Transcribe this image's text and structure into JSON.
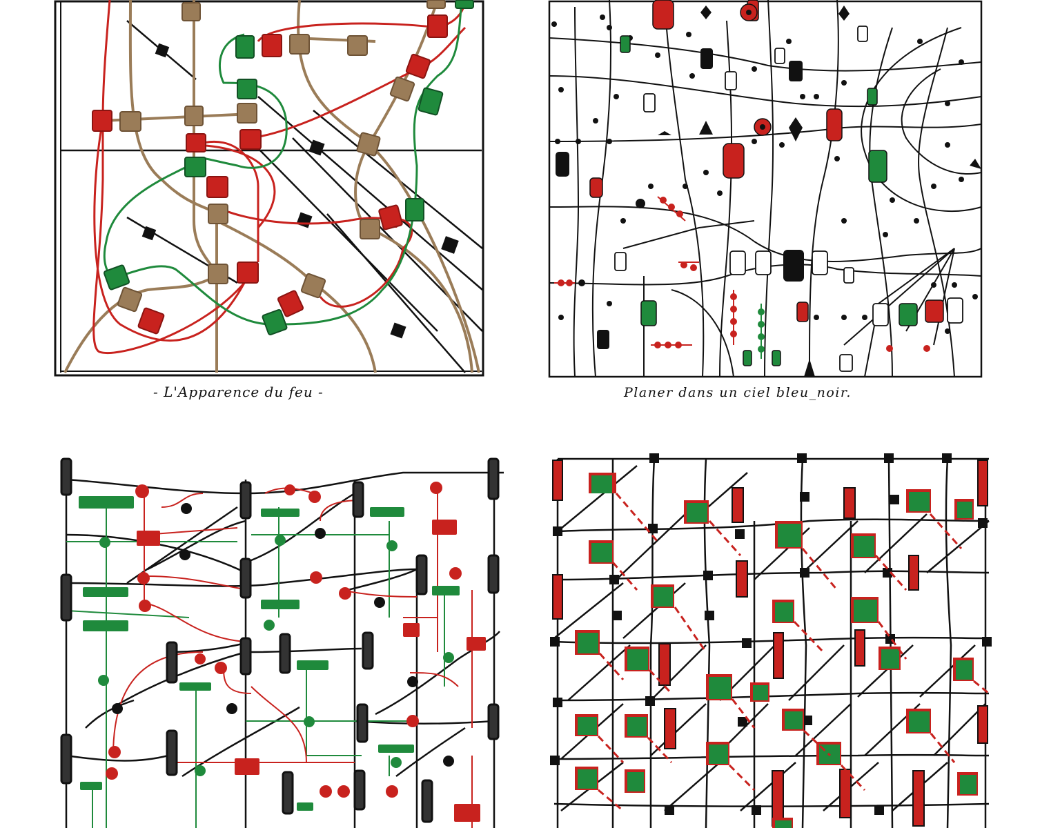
{
  "captions": {
    "drawing_1": "- L'Apparence du feu -",
    "drawing_2": "Planer dans un ciel bleu_noir."
  },
  "colors": {
    "ink": "#111111",
    "red": "#c8221e",
    "green": "#1f8a3c",
    "brown": "#9a7c58",
    "paper": "#ffffff"
  }
}
